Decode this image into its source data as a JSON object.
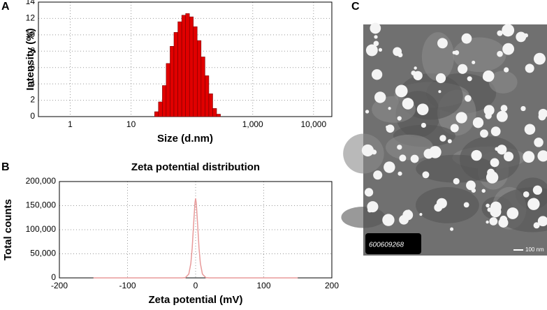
{
  "chart_data": [
    {
      "type": "histogram",
      "panel": "A",
      "x_label": "Size (d.nm)",
      "y_label": "Intensity (%)",
      "log_x": true,
      "grid": true,
      "color": "#e00000",
      "bins": [
        24.4,
        28.2,
        32.7,
        37.8,
        43.8,
        50.7,
        58.8,
        68.1,
        78.8,
        91.3,
        105.7,
        122.4,
        141.8,
        164.2,
        190.1,
        220.2,
        255.0,
        295.3
      ],
      "values": [
        0.6,
        1.8,
        3.8,
        6.5,
        8.6,
        10.3,
        11.6,
        12.4,
        12.6,
        12.2,
        11.0,
        9.3,
        7.3,
        5.0,
        2.8,
        1.0,
        0.3
      ],
      "xlim": [
        0.3,
        20000
      ],
      "xticks": [
        1,
        10,
        {
          "value": 1000,
          "label": "1,000"
        },
        {
          "value": 10000,
          "label": "10,000"
        }
      ],
      "ylim": [
        0,
        14
      ],
      "yticks": [
        0,
        2,
        4,
        6,
        8,
        10,
        12,
        14
      ]
    },
    {
      "type": "line",
      "panel": "B",
      "title": "Zeta potential distribution",
      "x_label": "Zeta potential (mV)",
      "y_label": "Total counts",
      "grid": true,
      "color": "#e89a9a",
      "x": [
        -150,
        -20,
        -15,
        -10,
        -7,
        -5,
        -3,
        -1,
        0,
        1,
        3,
        5,
        7,
        10,
        15,
        20,
        150
      ],
      "values": [
        0,
        0,
        500,
        8000,
        30000,
        62000,
        110000,
        155000,
        165000,
        155000,
        110000,
        62000,
        30000,
        8000,
        500,
        0,
        0
      ],
      "xlim": [
        -200,
        200
      ],
      "xticks": [
        -200,
        -100,
        0,
        100,
        200
      ],
      "ylim": [
        0,
        200000
      ],
      "yticks": [
        0,
        {
          "value": 50000,
          "label": "50,000"
        },
        {
          "value": 100000,
          "label": "100,000"
        },
        {
          "value": 150000,
          "label": "150,000"
        },
        {
          "value": 200000,
          "label": "200,000"
        }
      ]
    }
  ],
  "image_panel": {
    "label": "C",
    "plate_id": "600609268",
    "scale_bar": "100 nm"
  }
}
